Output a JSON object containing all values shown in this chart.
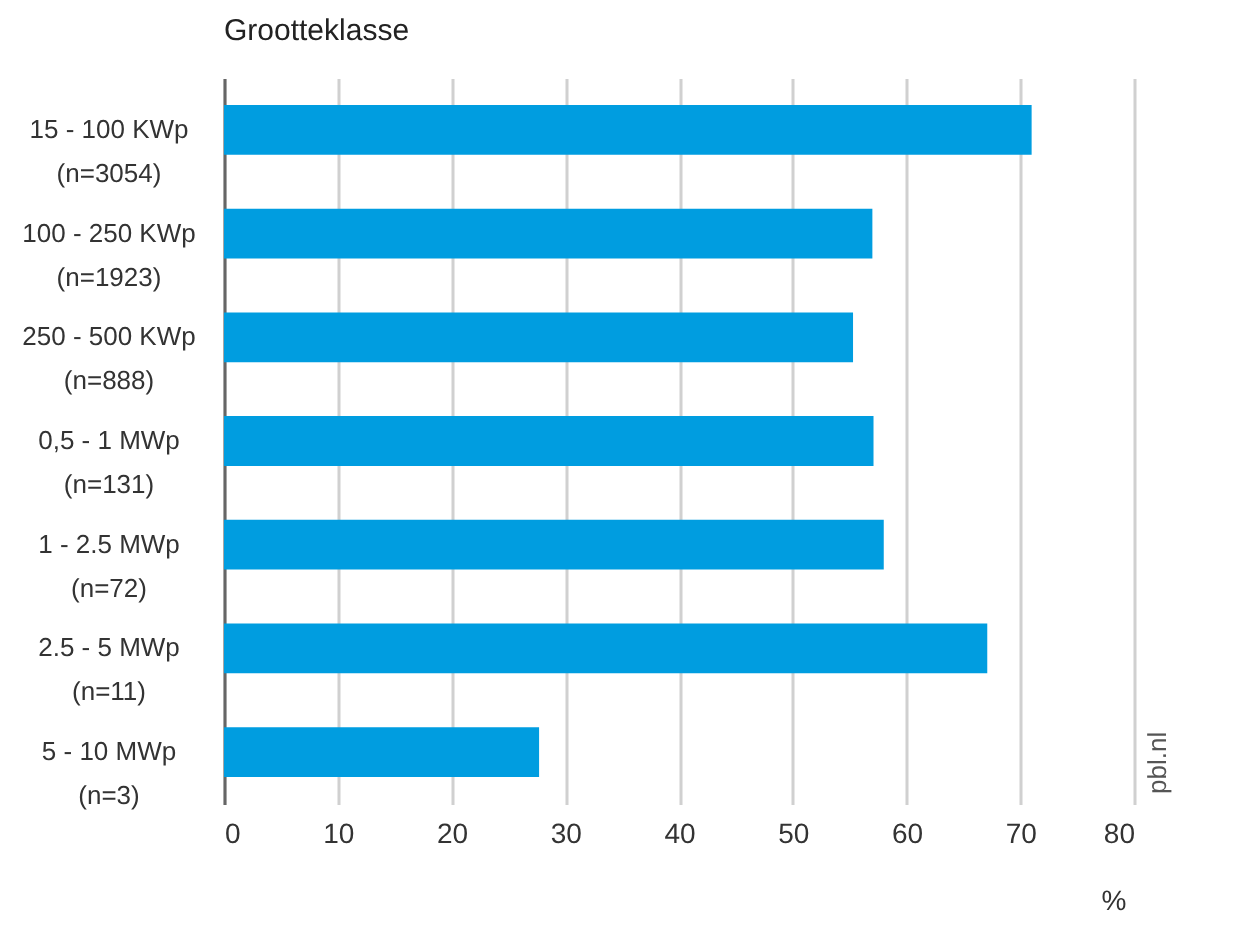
{
  "chart_data": {
    "type": "bar",
    "orientation": "horizontal",
    "title": "Grootteklasse",
    "xlabel": "%",
    "categories": [
      "15 - 100 KWp\n(n=3054)",
      "100 - 250 KWp\n(n=1923)",
      "250 - 500 KWp\n(n=888)",
      "0,5 - 1 MWp\n(n=131)",
      "1 - 2.5 MWp\n(n=72)",
      "2.5 - 5 MWp\n(n=11)",
      "5 - 10 MWp\n(n=3)"
    ],
    "values": [
      71,
      57,
      55.3,
      57.1,
      58,
      67.1,
      27.7
    ],
    "color": "#009de0",
    "xlim": [
      0,
      80
    ],
    "xticks": [
      0,
      10,
      20,
      30,
      40,
      50,
      60,
      70,
      80
    ],
    "grid": "x",
    "annotations": [
      "pbl.nl"
    ]
  }
}
